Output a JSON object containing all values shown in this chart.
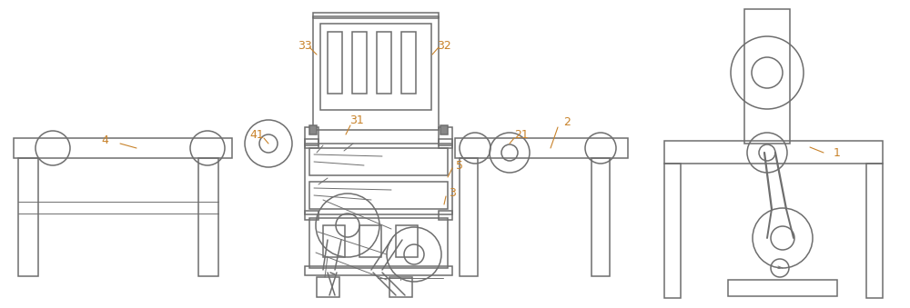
{
  "bg_color": "#ffffff",
  "line_color": "#6e6e6e",
  "label_color": "#c8822a",
  "lw": 1.1,
  "lw_thin": 0.7,
  "fig_width": 10.0,
  "fig_height": 3.39
}
